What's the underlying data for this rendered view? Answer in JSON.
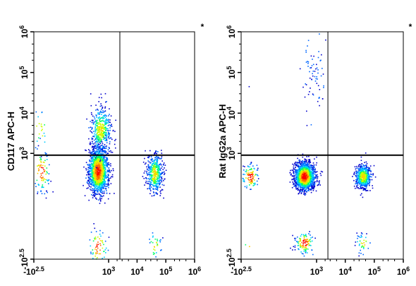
{
  "chart_data": [
    {
      "type": "scatter",
      "subtype": "flow-cytometry-density-dot-plot",
      "ylabel": "CD117 APC-H",
      "xlabel": "",
      "corner_mark": "*",
      "x_scale": "biexponential",
      "y_scale": "biexponential",
      "xlim": [
        "-10^2.5",
        "10^6"
      ],
      "ylim": [
        "-10^2.5",
        "10^6"
      ],
      "x_ticks": [
        {
          "base": "-10",
          "exp": "2.5",
          "value": -316.2
        },
        {
          "base": "10",
          "exp": "3",
          "value": 1000
        },
        {
          "base": "10",
          "exp": "4",
          "value": 10000
        },
        {
          "base": "10",
          "exp": "5",
          "value": 100000
        },
        {
          "base": "10",
          "exp": "6",
          "value": 1000000
        }
      ],
      "y_ticks": [
        {
          "base": "-10",
          "exp": "2.5",
          "value": -316.2
        },
        {
          "base": "10",
          "exp": "3",
          "value": 1000
        },
        {
          "base": "10",
          "exp": "4",
          "value": 10000
        },
        {
          "base": "10",
          "exp": "5",
          "value": 100000
        },
        {
          "base": "10",
          "exp": "6",
          "value": 1000000
        }
      ],
      "gates": {
        "x_divider": 2500,
        "y_divider": 900
      },
      "populations": [
        {
          "name": "",
          "x_center": 400,
          "y_center": 350,
          "spread_x_decades": 0.35,
          "spread_y_decades": 0.6,
          "weight": 0.62
        },
        {
          "name": "",
          "x_center": 500,
          "y_center": 4000,
          "spread_x_decades": 0.35,
          "spread_y_decades": 0.55,
          "weight": 0.18
        },
        {
          "name": "",
          "x_center": 40000,
          "y_center": 300,
          "spread_x_decades": 0.25,
          "spread_y_decades": 0.5,
          "weight": 0.2
        }
      ],
      "colors": [
        "#0000cc",
        "#0066ff",
        "#00ccff",
        "#00ff66",
        "#ccff00",
        "#ffcc00",
        "#ff6600",
        "#ff0000"
      ]
    },
    {
      "type": "scatter",
      "subtype": "flow-cytometry-density-dot-plot",
      "ylabel": "Rat IgG2a APC-H",
      "xlabel": "",
      "corner_mark": "*",
      "x_scale": "biexponential",
      "y_scale": "biexponential",
      "xlim": [
        "-10^2.5",
        "10^6"
      ],
      "ylim": [
        "-10^2.5",
        "10^6"
      ],
      "x_ticks": [
        {
          "base": "-10",
          "exp": "2.5",
          "value": -316.2
        },
        {
          "base": "10",
          "exp": "3",
          "value": 1000
        },
        {
          "base": "10",
          "exp": "4",
          "value": 10000
        },
        {
          "base": "10",
          "exp": "5",
          "value": 100000
        },
        {
          "base": "10",
          "exp": "6",
          "value": 1000000
        }
      ],
      "y_ticks": [
        {
          "base": "-10",
          "exp": "2.5",
          "value": -316.2
        },
        {
          "base": "10",
          "exp": "3",
          "value": 1000
        },
        {
          "base": "10",
          "exp": "4",
          "value": 10000
        },
        {
          "base": "10",
          "exp": "5",
          "value": 100000
        },
        {
          "base": "10",
          "exp": "6",
          "value": 1000000
        }
      ],
      "gates": {
        "x_divider": 2500,
        "y_divider": 900
      },
      "populations": [
        {
          "name": "",
          "x_center": 350,
          "y_center": 250,
          "spread_x_decades": 0.35,
          "spread_y_decades": 0.35,
          "weight": 0.72
        },
        {
          "name": "",
          "x_center": 40000,
          "y_center": 250,
          "spread_x_decades": 0.25,
          "spread_y_decades": 0.3,
          "weight": 0.25
        },
        {
          "name": "",
          "x_center": 800,
          "y_center": 100000,
          "spread_x_decades": 0.4,
          "spread_y_decades": 0.9,
          "weight": 0.03
        }
      ],
      "colors": [
        "#0000cc",
        "#0066ff",
        "#00ccff",
        "#00ff66",
        "#ccff00",
        "#ffcc00",
        "#ff6600",
        "#ff0000"
      ]
    }
  ]
}
